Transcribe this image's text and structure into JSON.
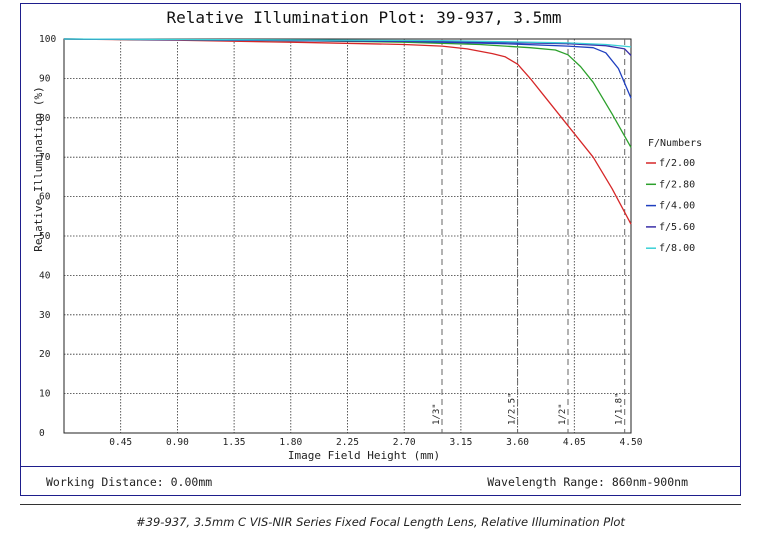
{
  "chart_data": {
    "type": "line",
    "title": "Relative Illumination Plot: 39-937, 3.5mm",
    "xlabel": "Image Field Height (mm)",
    "ylabel": "Relative Illumination (%)",
    "xlim": [
      0,
      4.5
    ],
    "ylim": [
      0,
      100
    ],
    "x_ticks": [
      "0.45",
      "0.90",
      "1.35",
      "1.80",
      "2.25",
      "2.70",
      "3.15",
      "3.60",
      "4.05",
      "4.50"
    ],
    "y_ticks": [
      "0",
      "10",
      "20",
      "30",
      "40",
      "50",
      "60",
      "70",
      "80",
      "90",
      "100"
    ],
    "grid": true,
    "legend_title": "F/Numbers",
    "legend_position": "right",
    "series": [
      {
        "name": "f/2.00",
        "color": "#d62728",
        "points": [
          [
            0,
            100
          ],
          [
            0.9,
            99.7
          ],
          [
            1.8,
            99.2
          ],
          [
            2.7,
            98.6
          ],
          [
            3.0,
            98.2
          ],
          [
            3.2,
            97.5
          ],
          [
            3.4,
            96.3
          ],
          [
            3.5,
            95.5
          ],
          [
            3.6,
            93.6
          ],
          [
            3.7,
            90.0
          ],
          [
            3.8,
            86.0
          ],
          [
            4.0,
            78.0
          ],
          [
            4.2,
            70.0
          ],
          [
            4.35,
            62.0
          ],
          [
            4.5,
            53.0
          ]
        ]
      },
      {
        "name": "f/2.80",
        "color": "#2ca02c",
        "points": [
          [
            0,
            100
          ],
          [
            1.8,
            99.6
          ],
          [
            2.7,
            99.2
          ],
          [
            3.3,
            98.6
          ],
          [
            3.7,
            97.8
          ],
          [
            3.9,
            97.2
          ],
          [
            4.0,
            96.0
          ],
          [
            4.1,
            93.0
          ],
          [
            4.2,
            89.0
          ],
          [
            4.35,
            81.0
          ],
          [
            4.5,
            72.5
          ]
        ]
      },
      {
        "name": "f/4.00",
        "color": "#1f3fbf",
        "points": [
          [
            0,
            100
          ],
          [
            2.7,
            99.4
          ],
          [
            3.5,
            98.8
          ],
          [
            4.0,
            98.2
          ],
          [
            4.2,
            97.8
          ],
          [
            4.3,
            96.5
          ],
          [
            4.4,
            92.5
          ],
          [
            4.5,
            85.0
          ]
        ]
      },
      {
        "name": "f/5.60",
        "color": "#3a2fa8",
        "points": [
          [
            0,
            100
          ],
          [
            3.0,
            99.4
          ],
          [
            4.0,
            98.8
          ],
          [
            4.3,
            98.3
          ],
          [
            4.45,
            97.5
          ],
          [
            4.5,
            95.8
          ]
        ]
      },
      {
        "name": "f/8.00",
        "color": "#3ad0d6",
        "points": [
          [
            0,
            100
          ],
          [
            3.0,
            99.6
          ],
          [
            4.0,
            99.0
          ],
          [
            4.3,
            98.6
          ],
          [
            4.5,
            98.0
          ]
        ]
      }
    ],
    "sensor_markers": [
      {
        "label": "1/3\"",
        "x": 3.0
      },
      {
        "label": "1/2.5\"",
        "x": 3.6
      },
      {
        "label": "1/2\"",
        "x": 4.0
      },
      {
        "label": "1/1.8\"",
        "x": 4.45
      }
    ]
  },
  "footer": {
    "working_distance": "Working Distance: 0.00mm",
    "wavelength_range": "Wavelength Range: 860nm-900nm"
  },
  "caption": "#39-937, 3.5mm C VIS-NIR Series Fixed Focal Length Lens, Relative Illumination Plot"
}
